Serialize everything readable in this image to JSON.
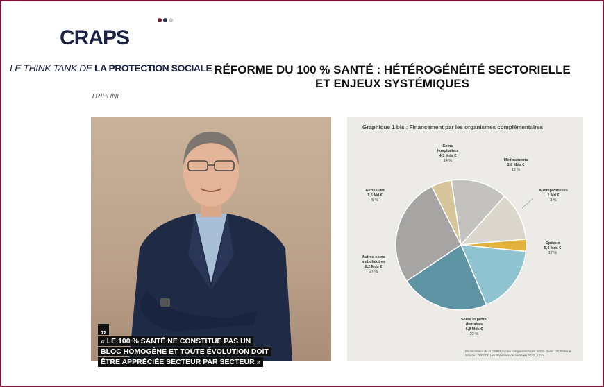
{
  "brand": {
    "logo_text": "CRAPS",
    "dot_colors": [
      "#7a1a3a",
      "#2a2f4f",
      "#c9c9c9"
    ],
    "tagline_prefix": "LE THINK TANK DE ",
    "tagline_bold": "LA PROTECTION SOCIALE",
    "section": "TRIBUNE"
  },
  "article": {
    "title_line1": "RÉFORME DU 100 % SANTÉ : HÉTÉROGÉNÉITÉ SECTORIELLE",
    "title_line2": "ET ENJEUX SYSTÉMIQUES"
  },
  "quote": {
    "mark": "„",
    "line1": "« LE 100 % SANTÉ NE CONSTITUE PAS UN",
    "line2": "BLOC HOMOGÈNE ET TOUTE ÉVOLUTION DOIT",
    "line3": "ÊTRE APPRÉCIÉE SECTEUR PAR SECTEUR »"
  },
  "chart_data": {
    "type": "pie",
    "title": "Graphique 1 bis : Financement par les organismes complémentaires",
    "slices": [
      {
        "name": "Soins hospitaliers",
        "amount": "4,3 Mds €",
        "percent_label": "14 %",
        "value": 14,
        "color": "#c4c2bf"
      },
      {
        "name": "Médicaments",
        "amount": "3,8 Mds €",
        "percent_label": "12 %",
        "value": 12,
        "color": "#dcd7cc"
      },
      {
        "name": "Audioprothèses",
        "amount": "1 Md €",
        "percent_label": "3 %",
        "value": 3,
        "color": "#e2b23c"
      },
      {
        "name": "Optique",
        "amount": "5,4 Mds €",
        "percent_label": "17 %",
        "value": 17,
        "color": "#8fc3d0"
      },
      {
        "name": "Soins et proth. dentaires",
        "amount": "6,8 Mds €",
        "percent_label": "22 %",
        "value": 22,
        "color": "#5d93a3"
      },
      {
        "name": "Autres soins ambulatoires",
        "amount": "8,2 Mds €",
        "percent_label": "27 %",
        "value": 27,
        "color": "#a6a5a3"
      },
      {
        "name": "Autres DM",
        "amount": "1,5 Md €",
        "percent_label": "5 %",
        "value": 5,
        "color": "#d6c49b"
      }
    ],
    "source_line1": "Financement de la CSBM par les complémentaires 2023 - Total : 30,8 Mds €",
    "source_line2": "Source : DREES, Les dépenses de santé en 2023, p.124"
  }
}
